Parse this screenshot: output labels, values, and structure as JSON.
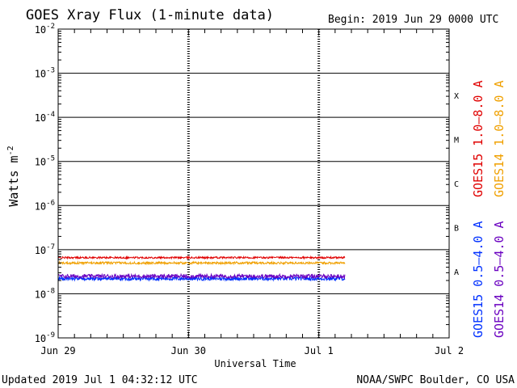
{
  "chart_data": {
    "type": "line",
    "title": "GOES Xray Flux (1-minute data)",
    "begin_label": "Begin:  2019 Jun 29 0000 UTC",
    "xlabel": "Universal Time",
    "ylabel_base": "Watts m",
    "ylabel_exp": "-2",
    "x_ticks": [
      {
        "label": "Jun 29",
        "day": 0
      },
      {
        "label": "Jun 30",
        "day": 1
      },
      {
        "label": "Jul 1",
        "day": 2
      },
      {
        "label": "Jul 2",
        "day": 3
      }
    ],
    "xlim_days": [
      0,
      3
    ],
    "ylim_exp": [
      -9,
      -2
    ],
    "y_ticks": [
      {
        "base": "10",
        "exp": "-9",
        "value_exp": -9
      },
      {
        "base": "10",
        "exp": "-8",
        "value_exp": -8
      },
      {
        "base": "10",
        "exp": "-7",
        "value_exp": -7
      },
      {
        "base": "10",
        "exp": "-6",
        "value_exp": -6
      },
      {
        "base": "10",
        "exp": "-5",
        "value_exp": -5
      },
      {
        "base": "10",
        "exp": "-4",
        "value_exp": -4
      },
      {
        "base": "10",
        "exp": "-3",
        "value_exp": -3
      },
      {
        "base": "10",
        "exp": "-2",
        "value_exp": -2
      }
    ],
    "flare_classes": [
      {
        "label": "A",
        "value_exp": -7.5
      },
      {
        "label": "B",
        "value_exp": -6.5
      },
      {
        "label": "C",
        "value_exp": -5.5
      },
      {
        "label": "M",
        "value_exp": -4.5
      },
      {
        "label": "X",
        "value_exp": -3.5
      }
    ],
    "series": [
      {
        "name": "GOES15 1.0-8.0 A",
        "color": "#e00000",
        "start_day": 0,
        "end_day": 2.2,
        "value": 6.6e-08,
        "noise_exp": 0.02
      },
      {
        "name": "GOES14 1.0-8.0 A",
        "color": "#f0a000",
        "start_day": 0,
        "end_day": 2.2,
        "value": 5e-08,
        "noise_exp": 0.025
      },
      {
        "name": "GOES15 0.5-4.0 A",
        "color": "#0030ff",
        "start_day": 0,
        "end_day": 2.2,
        "value": 2.2e-08,
        "noise_exp": 0.04
      },
      {
        "name": "GOES14 0.5-4.0 A",
        "color": "#6a00c0",
        "start_day": 0,
        "end_day": 2.2,
        "value": 2.5e-08,
        "noise_exp": 0.045
      }
    ],
    "legend_upper": [
      {
        "label": "GOES15 1.0–8.0 A",
        "color": "#e00000"
      },
      {
        "label": "GOES14 1.0–8.0 A",
        "color": "#f0a000"
      }
    ],
    "legend_lower": [
      {
        "label": "GOES15 0.5–4.0 A",
        "color": "#0030ff"
      },
      {
        "label": "GOES14 0.5–4.0 A",
        "color": "#6a00c0"
      }
    ]
  },
  "footer": {
    "updated": "Updated 2019 Jul  1 04:32:12 UTC",
    "source": "NOAA/SWPC Boulder, CO USA"
  }
}
